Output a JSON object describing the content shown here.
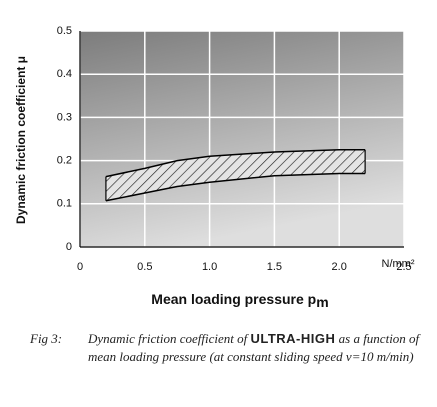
{
  "chart_data": {
    "type": "band",
    "ylabel": "Dynamic friction coefficient μ",
    "xlabel": "Mean loading pressure p",
    "xlabel_sub": "m",
    "x_unit": "N/mm²",
    "x": [
      0.2,
      0.5,
      0.75,
      1.0,
      1.5,
      2.0,
      2.2
    ],
    "upper": [
      0.163,
      0.182,
      0.2,
      0.21,
      0.22,
      0.225,
      0.225
    ],
    "lower": [
      0.107,
      0.125,
      0.14,
      0.15,
      0.165,
      0.17,
      0.17
    ],
    "color": "#000000",
    "xlim": [
      0,
      2.5
    ],
    "ylim": [
      0,
      0.5
    ],
    "xticks": [
      0,
      0.5,
      {
        "value": 1,
        "label": "1.0"
      },
      1.5,
      {
        "value": 2,
        "label": "2.0"
      },
      2.5
    ],
    "yticks": [
      0,
      0.1,
      0.2,
      0.3,
      0.4,
      0.5
    ],
    "grid": true
  },
  "caption": {
    "label": "Fig 3:",
    "parts": [
      "Dynamic friction coefficient of ",
      "ULTRA-HIGH",
      " as a function of mean loading pressure (at constant sliding speed v=10 m/min)"
    ]
  }
}
